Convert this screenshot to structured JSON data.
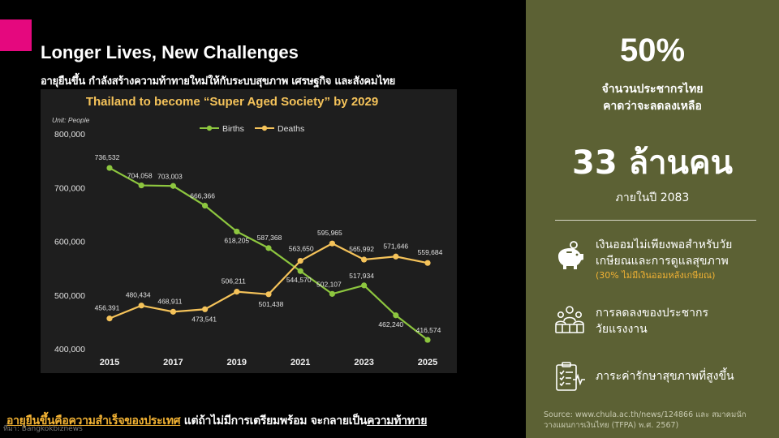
{
  "title": "Longer Lives, New Challenges",
  "subtitle": "อายุยืนขึ้น กำลังสร้างความท้าทายใหม่ให้กับระบบสุขภาพ เศรษฐกิจ และสังคมไทย",
  "bottom": {
    "part1": "อายุยืนขึ้นคือความสำเร็จของประเทศ",
    "part2": " แต่ถ้าไม่มีการเตรียมพร้อม จะกลายเป็น",
    "part3": "ความท้าทาย",
    "credit": "ที่มา: Bangkokbiznews"
  },
  "side": {
    "percent": "50%",
    "line1": "จำนวนประชากรไทย",
    "line2": "คาดว่าจะลดลงเหลือ",
    "big": "33 ล้านคน",
    "year": "ภายในปี 2083",
    "items": [
      {
        "icon": "piggy-bank-icon",
        "line1": "เงินออมไม่เพียงพอสำหรับวัย",
        "line2": "เกษียณและการดูแลสุขภาพ",
        "note": "(30% ไม่มีเงินออมหลังเกษียณ)"
      },
      {
        "icon": "workforce-group-icon",
        "line1": "การลดลงของประชากร",
        "line2": "วัยแรงงาน"
      },
      {
        "icon": "medical-report-icon",
        "line1": "ภาระค่ารักษาสุขภาพที่สูงขึ้น"
      }
    ],
    "source": "Source: www.chula.ac.th/news/124866 และ สมาคมนักวางแผนการเงินไทย (TFPA) พ.ศ. 2567)"
  },
  "chart_data": {
    "type": "line",
    "title": "Thailand to become “Super Aged Society” by 2029",
    "unit": "Unit: People",
    "x": [
      2015,
      2016,
      2017,
      2018,
      2019,
      2020,
      2021,
      2022,
      2023,
      2024,
      2025
    ],
    "xticks": [
      "2015",
      "2017",
      "2019",
      "2021",
      "2023",
      "2025"
    ],
    "yticks": [
      "400,000",
      "500,000",
      "600,000",
      "700,000",
      "800,000"
    ],
    "ylim": [
      400000,
      800000
    ],
    "legend_position": "top-center",
    "series": [
      {
        "name": "Births",
        "color": "#8dc63f",
        "values": [
          736532,
          704058,
          703003,
          666366,
          618205,
          587368,
          544570,
          502107,
          517934,
          462240,
          416574
        ],
        "labels": [
          "736,532",
          "704,058",
          "703,003",
          "666,366",
          "618,205",
          "587,368",
          "544,570",
          "502,107",
          "517,934",
          "462,240",
          "416,574"
        ]
      },
      {
        "name": "Deaths",
        "color": "#f5c35a",
        "values": [
          456391,
          480434,
          468911,
          473541,
          506211,
          501438,
          563650,
          595965,
          565992,
          571646,
          559684
        ],
        "labels": [
          "456,391",
          "480,434",
          "468,911",
          "473,541",
          "506,211",
          "501,438",
          "563,650",
          "595,965",
          "565,992",
          "571,646",
          "559,684"
        ]
      }
    ]
  },
  "colors": {
    "accent": "#e5087e",
    "panel": "#5c6134",
    "highlight": "#f2b233",
    "births": "#8dc63f",
    "deaths": "#f5c35a"
  }
}
